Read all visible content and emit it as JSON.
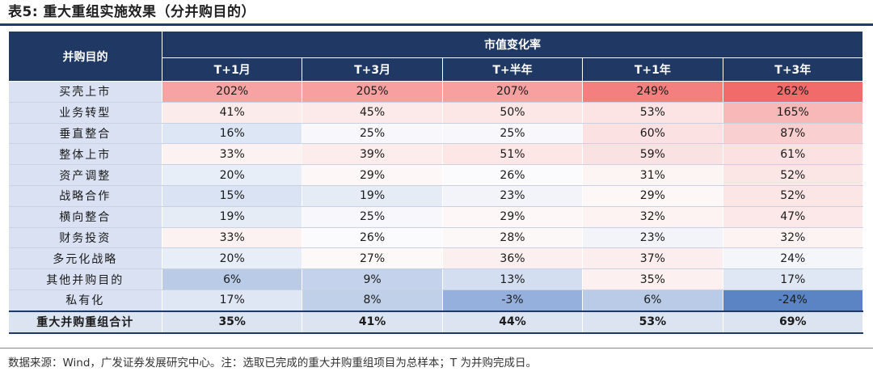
{
  "title": "表5: 重大重组实施效果（分并购目的）",
  "table": {
    "row_header": "并购目的",
    "group_header": "市值变化率",
    "columns": [
      "T+1月",
      "T+3月",
      "T+半年",
      "T+1年",
      "T+3年"
    ],
    "rows": [
      {
        "label": "买壳上市",
        "values": [
          "202%",
          "205%",
          "207%",
          "249%",
          "262%"
        ],
        "colors": [
          "#f8a3a3",
          "#f8a0a0",
          "#f89f9f",
          "#f37f7f",
          "#f16b6b"
        ]
      },
      {
        "label": "业务转型",
        "values": [
          "41%",
          "45%",
          "50%",
          "53%",
          "165%"
        ],
        "colors": [
          "#fcebeb",
          "#fce9e9",
          "#fce6e6",
          "#fce4e4",
          "#f9b8b8"
        ]
      },
      {
        "label": "垂直整合",
        "values": [
          "16%",
          "25%",
          "25%",
          "60%",
          "87%"
        ],
        "colors": [
          "#dde6f4",
          "#f8f7fb",
          "#f8f7fb",
          "#fbe1e1",
          "#facfcf"
        ]
      },
      {
        "label": "整体上市",
        "values": [
          "33%",
          "39%",
          "51%",
          "59%",
          "61%"
        ],
        "colors": [
          "#fdf2f2",
          "#fcecec",
          "#fce6e6",
          "#fbe2e2",
          "#fbe1e1"
        ]
      },
      {
        "label": "资产调整",
        "values": [
          "20%",
          "29%",
          "26%",
          "31%",
          "52%"
        ],
        "colors": [
          "#e8eef7",
          "#fdf7f7",
          "#fbfafc",
          "#fdf4f4",
          "#fce5e5"
        ]
      },
      {
        "label": "战略合作",
        "values": [
          "15%",
          "19%",
          "23%",
          "29%",
          "52%"
        ],
        "colors": [
          "#d9e3f3",
          "#e5ecf6",
          "#f2f4f9",
          "#fdf7f7",
          "#fce5e5"
        ]
      },
      {
        "label": "横向整合",
        "values": [
          "19%",
          "25%",
          "29%",
          "32%",
          "47%"
        ],
        "colors": [
          "#e5ecf6",
          "#f8f7fb",
          "#fdf7f7",
          "#fdf3f3",
          "#fce8e8"
        ]
      },
      {
        "label": "财务投资",
        "values": [
          "33%",
          "26%",
          "28%",
          "23%",
          "32%"
        ],
        "colors": [
          "#fdf2f2",
          "#fbfafc",
          "#fdf8f8",
          "#f2f4f9",
          "#fdf3f3"
        ]
      },
      {
        "label": "多元化战略",
        "values": [
          "20%",
          "27%",
          "36%",
          "37%",
          "24%"
        ],
        "colors": [
          "#e8eef7",
          "#fdf9f9",
          "#fcefef",
          "#fceeee",
          "#f5f6fa"
        ]
      },
      {
        "label": "其他并购目的",
        "values": [
          "6%",
          "9%",
          "13%",
          "35%",
          "17%"
        ],
        "colors": [
          "#b9cbe7",
          "#c4d3eb",
          "#d3dff1",
          "#fcf0f0",
          "#dfe7f4"
        ]
      },
      {
        "label": "私有化",
        "values": [
          "17%",
          "8%",
          "-3%",
          "6%",
          "-24%"
        ],
        "colors": [
          "#dfe7f4",
          "#c0d0e9",
          "#95b0dc",
          "#b9cbe7",
          "#5b84c4"
        ]
      }
    ],
    "total": {
      "label": "重大并购重组合计",
      "values": [
        "35%",
        "41%",
        "44%",
        "53%",
        "69%"
      ]
    }
  },
  "note": "数据来源：Wind，广发证券发展研究中心。注：选取已完成的重大并购重组项目为总样本；T 为并购完成日。"
}
